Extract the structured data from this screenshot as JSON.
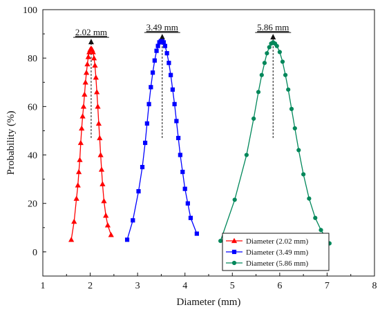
{
  "chart_data": {
    "type": "line",
    "title": "",
    "xlabel": "Diameter (mm)",
    "ylabel": "Probability (%)",
    "xlim": [
      1,
      8
    ],
    "ylim": [
      -10,
      100
    ],
    "xticks": [
      1,
      2,
      3,
      4,
      5,
      6,
      7,
      8
    ],
    "yticks": [
      0,
      20,
      40,
      60,
      80,
      100
    ],
    "grid": false,
    "legend_position": "bottom-right",
    "series": [
      {
        "name": "Diameter (2.02 mm)",
        "color": "#ff0000",
        "marker": "triangle",
        "x": [
          1.6,
          1.66,
          1.71,
          1.74,
          1.76,
          1.78,
          1.8,
          1.82,
          1.84,
          1.86,
          1.88,
          1.9,
          1.92,
          1.94,
          1.96,
          1.98,
          2.0,
          2.02,
          2.04,
          2.06,
          2.08,
          2.1,
          2.12,
          2.14,
          2.16,
          2.18,
          2.2,
          2.22,
          2.24,
          2.26,
          2.29,
          2.33,
          2.37,
          2.44
        ],
        "y": [
          5,
          12.5,
          22,
          27.5,
          33,
          38,
          45,
          51,
          56,
          60,
          65,
          70,
          74,
          77.5,
          80.5,
          82.5,
          83.5,
          84,
          83.5,
          82.5,
          80,
          77,
          72,
          66,
          60,
          53,
          47,
          40,
          34,
          28,
          21,
          15,
          11,
          7
        ]
      },
      {
        "name": "Diameter (3.49 mm)",
        "color": "#0000ff",
        "marker": "square",
        "x": [
          2.78,
          2.9,
          3.02,
          3.1,
          3.16,
          3.2,
          3.24,
          3.28,
          3.32,
          3.36,
          3.4,
          3.43,
          3.46,
          3.49,
          3.52,
          3.55,
          3.58,
          3.62,
          3.66,
          3.7,
          3.74,
          3.78,
          3.82,
          3.86,
          3.9,
          3.95,
          4.0,
          4.06,
          4.12,
          4.25
        ],
        "y": [
          5,
          13,
          25,
          35,
          45,
          53,
          61,
          68,
          74,
          79,
          83,
          85,
          86.5,
          87,
          87,
          86.5,
          85,
          82,
          78,
          73,
          67,
          61,
          54,
          47,
          40,
          33,
          26,
          20,
          14,
          7.5
        ]
      },
      {
        "name": "Diameter (5.86 mm)",
        "color": "#00875a",
        "marker": "circle",
        "x": [
          4.75,
          5.05,
          5.3,
          5.45,
          5.55,
          5.62,
          5.68,
          5.73,
          5.78,
          5.82,
          5.86,
          5.9,
          5.94,
          6.0,
          6.06,
          6.12,
          6.18,
          6.25,
          6.32,
          6.4,
          6.5,
          6.62,
          6.75,
          6.87,
          7.05
        ],
        "y": [
          4.5,
          21.5,
          40,
          55,
          66,
          73,
          78,
          82,
          84.5,
          86,
          86.5,
          86,
          85,
          82.5,
          78.5,
          73,
          67,
          59,
          51,
          42,
          32,
          22,
          14,
          9,
          3.5
        ]
      }
    ],
    "annotations": [
      {
        "text": "2.02 mm",
        "x": 2.02,
        "y_from": 47,
        "y_to": 88
      },
      {
        "text": "3.49 mm",
        "x": 3.52,
        "y_from": 47,
        "y_to": 90
      },
      {
        "text": "5.86 mm",
        "x": 5.86,
        "y_from": 47,
        "y_to": 90
      }
    ]
  }
}
